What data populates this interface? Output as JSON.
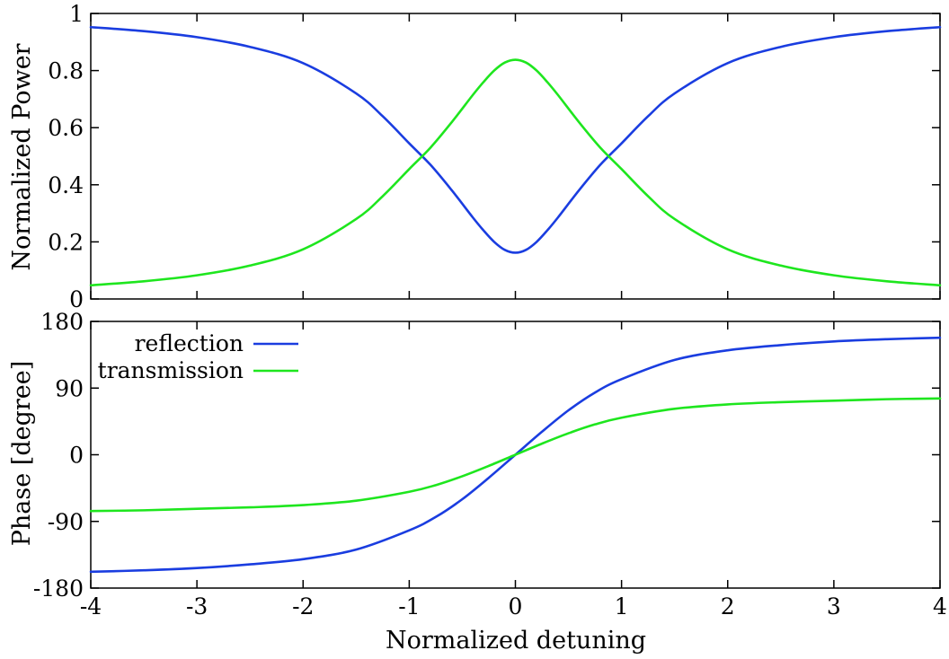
{
  "colors": {
    "reflection": "#1a3de0",
    "transmission": "#1ee61e",
    "frame": "#000000",
    "background": "#ffffff"
  },
  "chart_data": [
    {
      "type": "line",
      "xlabel": "",
      "ylabel": "Normalized Power",
      "xlim": [
        -4,
        4
      ],
      "ylim": [
        0,
        1
      ],
      "xticks": [
        -4,
        -3,
        -2,
        -1,
        0,
        1,
        2,
        3,
        4
      ],
      "xtick_labels_shown": false,
      "yticks": [
        0,
        0.2,
        0.4,
        0.6,
        0.8,
        1
      ],
      "ytick_labels": [
        "0",
        "0.2",
        "0.4",
        "0.6",
        "0.8",
        "1"
      ],
      "grid": false,
      "x": [
        -4,
        -3.5,
        -3,
        -2.5,
        -2,
        -1.5,
        -1.25,
        -1,
        -0.8,
        -0.6,
        -0.4,
        -0.3,
        -0.2,
        -0.1,
        0,
        0.1,
        0.2,
        0.3,
        0.4,
        0.6,
        0.8,
        1,
        1.25,
        1.5,
        2,
        2.5,
        3,
        3.5,
        4
      ],
      "series": [
        {
          "name": "reflection",
          "color": "#1a3de0",
          "values": [
            0.952,
            0.938,
            0.917,
            0.883,
            0.826,
            0.72,
            0.64,
            0.545,
            0.47,
            0.381,
            0.285,
            0.24,
            0.2,
            0.172,
            0.162,
            0.172,
            0.2,
            0.24,
            0.285,
            0.381,
            0.47,
            0.545,
            0.64,
            0.72,
            0.826,
            0.883,
            0.917,
            0.938,
            0.952
          ]
        },
        {
          "name": "transmission",
          "color": "#1ee61e",
          "values": [
            0.048,
            0.062,
            0.083,
            0.117,
            0.174,
            0.28,
            0.36,
            0.455,
            0.53,
            0.619,
            0.715,
            0.76,
            0.8,
            0.828,
            0.838,
            0.828,
            0.8,
            0.76,
            0.715,
            0.619,
            0.53,
            0.455,
            0.36,
            0.28,
            0.174,
            0.117,
            0.083,
            0.062,
            0.048
          ]
        }
      ]
    },
    {
      "type": "line",
      "xlabel": "Normalized detuning",
      "ylabel": "Phase [degree]",
      "xlim": [
        -4,
        4
      ],
      "ylim": [
        -180,
        180
      ],
      "xticks": [
        -4,
        -3,
        -2,
        -1,
        0,
        1,
        2,
        3,
        4
      ],
      "xtick_labels": [
        "-4",
        "-3",
        "-2",
        "-1",
        "0",
        "1",
        "2",
        "3",
        "4"
      ],
      "yticks": [
        -180,
        -90,
        0,
        90,
        180
      ],
      "ytick_labels": [
        "-180",
        "-90",
        "0",
        "90",
        "180"
      ],
      "grid": false,
      "legend": "top-left",
      "x": [
        -4,
        -3.5,
        -3,
        -2.5,
        -2,
        -1.5,
        -1,
        -0.75,
        -0.5,
        -0.25,
        0,
        0.25,
        0.5,
        0.75,
        1,
        1.5,
        2,
        2.5,
        3,
        3.5,
        4
      ],
      "series": [
        {
          "name": "reflection",
          "color": "#1a3de0",
          "values": [
            -158,
            -156,
            -153,
            -148,
            -141,
            -128,
            -102,
            -84,
            -60,
            -31,
            0,
            31,
            60,
            84,
            102,
            128,
            141,
            148,
            153,
            156,
            158
          ]
        },
        {
          "name": "transmission",
          "color": "#1ee61e",
          "values": [
            -76,
            -75,
            -73,
            -71,
            -68,
            -62,
            -50,
            -41,
            -29,
            -15,
            0,
            15,
            29,
            41,
            50,
            62,
            68,
            71,
            73,
            75,
            76
          ]
        }
      ]
    }
  ]
}
